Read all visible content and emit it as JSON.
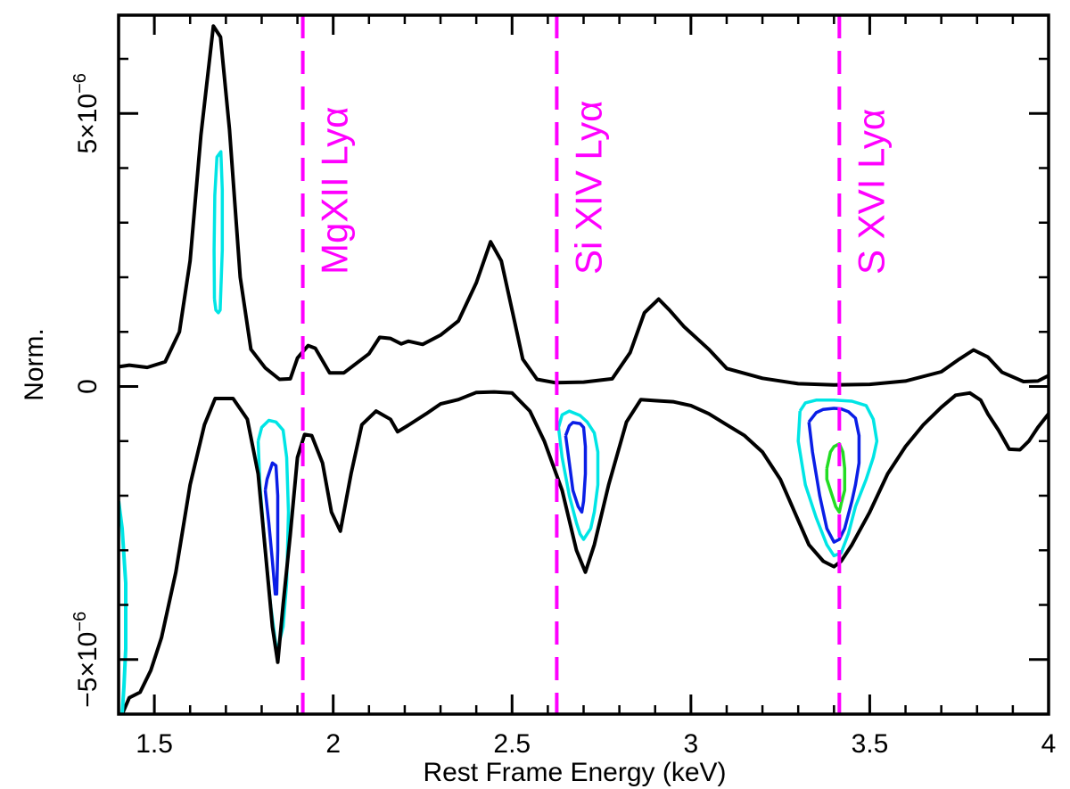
{
  "chart_data": {
    "type": "line",
    "title": "",
    "xlabel": "Rest Frame Energy (keV)",
    "ylabel": "Norm.",
    "xlim": [
      1.4,
      4.0
    ],
    "ylim": [
      -6e-06,
      6.8e-06
    ],
    "x_ticks": [
      {
        "value": 1.5,
        "label": "1.5"
      },
      {
        "value": 2.0,
        "label": "2"
      },
      {
        "value": 2.5,
        "label": "2.5"
      },
      {
        "value": 3.0,
        "label": "3"
      },
      {
        "value": 3.5,
        "label": "3.5"
      },
      {
        "value": 4.0,
        "label": "4"
      }
    ],
    "x_minor_step": 0.1,
    "y_ticks": [
      {
        "value": 5e-06,
        "label_base": "5×10",
        "label_exp": "−6"
      },
      {
        "value": 0,
        "label_base": "0",
        "label_exp": ""
      },
      {
        "value": -5e-06,
        "label_base": "−5×10",
        "label_exp": "−6"
      }
    ],
    "y_minor_step": 1e-06,
    "colors": {
      "black": "#000000",
      "cyan": "#00e5e5",
      "blue": "#0a1ee6",
      "green": "#22dd22",
      "magenta": "#ff00ff"
    },
    "reference_lines": [
      {
        "energy": 1.915,
        "label": "MgXII Lyα"
      },
      {
        "energy": 2.625,
        "label": "Si XIV Lyα"
      },
      {
        "energy": 3.415,
        "label": "S XVI Lyα"
      }
    ],
    "series": [
      {
        "name": "upper-envelope",
        "color": "black",
        "x": [
          1.4,
          1.43,
          1.48,
          1.53,
          1.57,
          1.6,
          1.63,
          1.665,
          1.685,
          1.71,
          1.74,
          1.77,
          1.81,
          1.85,
          1.88,
          1.9,
          1.93,
          1.95,
          1.99,
          2.03,
          2.1,
          2.13,
          2.16,
          2.19,
          2.21,
          2.25,
          2.3,
          2.35,
          2.4,
          2.44,
          2.47,
          2.5,
          2.53,
          2.57,
          2.62,
          2.7,
          2.78,
          2.83,
          2.87,
          2.91,
          2.94,
          2.98,
          3.05,
          3.1,
          3.2,
          3.3,
          3.4,
          3.5,
          3.6,
          3.7,
          3.75,
          3.79,
          3.83,
          3.87,
          3.93,
          3.97,
          4.0
        ],
        "y": [
          3.6e-07,
          3.9e-07,
          3.5e-07,
          4.5e-07,
          1e-06,
          2.3e-06,
          4.6e-06,
          6.6e-06,
          6.4e-06,
          4.7e-06,
          2e-06,
          6.8e-07,
          3.4e-07,
          1.3e-07,
          1.4e-07,
          5.2e-07,
          7.5e-07,
          7e-07,
          2.5e-07,
          2.5e-07,
          6e-07,
          9e-07,
          8.8e-07,
          7.8e-07,
          8.3e-07,
          7.7e-07,
          9.4e-07,
          1.2e-06,
          1.9e-06,
          2.65e-06,
          2.3e-06,
          1.4e-06,
          5e-07,
          1.3e-07,
          7e-08,
          8e-08,
          1.4e-07,
          6.2e-07,
          1.35e-06,
          1.6e-06,
          1.4e-06,
          1.1e-06,
          6.8e-07,
          3.3e-07,
          1.5e-07,
          5e-08,
          3e-08,
          4e-08,
          1e-07,
          2.7e-07,
          5e-07,
          6.7e-07,
          5.4e-07,
          2.6e-07,
          9e-08,
          1e-07,
          2e-07
        ]
      },
      {
        "name": "lower-envelope",
        "color": "black",
        "x": [
          1.41,
          1.43,
          1.46,
          1.49,
          1.52,
          1.56,
          1.6,
          1.64,
          1.67,
          1.72,
          1.76,
          1.79,
          1.81,
          1.83,
          1.845,
          1.86,
          1.88,
          1.9,
          1.92,
          1.94,
          1.97,
          1.995,
          2.02,
          2.05,
          2.08,
          2.12,
          2.16,
          2.18,
          2.21,
          2.26,
          2.3,
          2.35,
          2.4,
          2.45,
          2.5,
          2.55,
          2.59,
          2.64,
          2.68,
          2.705,
          2.73,
          2.77,
          2.82,
          2.86,
          2.9,
          2.95,
          3.0,
          3.05,
          3.1,
          3.15,
          3.2,
          3.25,
          3.29,
          3.33,
          3.37,
          3.4,
          3.42,
          3.45,
          3.5,
          3.55,
          3.6,
          3.65,
          3.7,
          3.74,
          3.78,
          3.81,
          3.83,
          3.86,
          3.89,
          3.92,
          3.945,
          3.97,
          4.0
        ],
        "y": [
          -6e-06,
          -5.7e-06,
          -5.6e-06,
          -5.2e-06,
          -4.6e-06,
          -3.4e-06,
          -1.8e-06,
          -7e-07,
          -2.2e-07,
          -2.2e-07,
          -6e-07,
          -1.6e-06,
          -3e-06,
          -4.4e-06,
          -5.05e-06,
          -4e-06,
          -2.7e-06,
          -1.3e-06,
          -8.8e-07,
          -9e-07,
          -1.4e-06,
          -2.3e-06,
          -2.65e-06,
          -1.6e-06,
          -7e-07,
          -4.5e-07,
          -6e-07,
          -8.3e-07,
          -7.1e-07,
          -5e-07,
          -3.2e-07,
          -2.4e-07,
          -1.1e-07,
          -1e-07,
          -1.2e-07,
          -4.5e-07,
          -1e-06,
          -1.9e-06,
          -3e-06,
          -3.4e-06,
          -2.9e-06,
          -1.8e-06,
          -6.5e-07,
          -2.4e-07,
          -2.6e-07,
          -2.8e-07,
          -3.5e-07,
          -5e-07,
          -7e-07,
          -9e-07,
          -1.2e-06,
          -1.7e-06,
          -2.3e-06,
          -2.9e-06,
          -3.2e-06,
          -3.3e-06,
          -3.2e-06,
          -2.9e-06,
          -2.3e-06,
          -1.6e-06,
          -1.1e-06,
          -7e-07,
          -3.8e-07,
          -1.6e-07,
          -1.2e-07,
          -2.5e-07,
          -5e-07,
          -8e-07,
          -1.15e-06,
          -1.16e-06,
          -1e-06,
          -7.5e-07,
          -5e-07
        ]
      },
      {
        "name": "cyan-contour-left-edge",
        "color": "cyan",
        "x": [
          1.4,
          1.41,
          1.42,
          1.42,
          1.415,
          1.41,
          1.4
        ],
        "y": [
          -2.1e-06,
          -2.6e-06,
          -3.6e-06,
          -4.8e-06,
          -5.5e-06,
          -6e-06,
          -6e-06
        ]
      }
    ],
    "contours": [
      {
        "name": "cyan-emission-1.68",
        "color": "cyan",
        "x": [
          1.668,
          1.672,
          1.679,
          1.684,
          1.69,
          1.69,
          1.686,
          1.675,
          1.669,
          1.667,
          1.668
        ],
        "y": [
          1.6e-06,
          1.4e-06,
          1.35e-06,
          1.4e-06,
          2.5e-06,
          3.6e-06,
          4.3e-06,
          4.2e-06,
          3.5e-06,
          2.5e-06,
          1.6e-06
        ]
      },
      {
        "name": "cyan-absorption-1.84",
        "color": "cyan",
        "x": [
          1.79,
          1.8,
          1.82,
          1.84,
          1.86,
          1.87,
          1.875,
          1.87,
          1.86,
          1.845,
          1.84,
          1.825,
          1.81,
          1.795,
          1.79
        ],
        "y": [
          -1e-06,
          -7.5e-07,
          -6.2e-07,
          -6.5e-07,
          -8e-07,
          -1.3e-06,
          -2.3e-06,
          -3.6e-06,
          -4.4e-06,
          -4.8e-06,
          -4.75e-06,
          -4e-06,
          -3e-06,
          -1.8e-06,
          -1e-06
        ]
      },
      {
        "name": "blue-absorption-1.84",
        "color": "blue",
        "x": [
          1.81,
          1.815,
          1.83,
          1.84,
          1.845,
          1.845,
          1.842,
          1.838,
          1.83,
          1.82,
          1.81
        ],
        "y": [
          -1.9e-06,
          -1.7e-06,
          -1.4e-06,
          -1.45e-06,
          -2e-06,
          -3e-06,
          -3.8e-06,
          -3.8e-06,
          -3.2e-06,
          -2.5e-06,
          -1.9e-06
        ]
      },
      {
        "name": "cyan-absorption-2.70",
        "color": "cyan",
        "x": [
          2.63,
          2.64,
          2.66,
          2.69,
          2.71,
          2.73,
          2.74,
          2.74,
          2.73,
          2.72,
          2.7,
          2.69,
          2.68,
          2.66,
          2.64,
          2.63
        ],
        "y": [
          -7.5e-07,
          -5.2e-07,
          -4.5e-07,
          -5.3e-07,
          -6.5e-07,
          -8.5e-07,
          -1.2e-06,
          -1.8e-06,
          -2.3e-06,
          -2.6e-06,
          -2.8e-06,
          -2.7e-06,
          -2.5e-06,
          -2e-06,
          -1.3e-06,
          -7.5e-07
        ]
      },
      {
        "name": "blue-absorption-2.70",
        "color": "blue",
        "x": [
          2.65,
          2.66,
          2.67,
          2.69,
          2.7,
          2.705,
          2.705,
          2.7,
          2.695,
          2.685,
          2.67,
          2.66,
          2.65
        ],
        "y": [
          -9e-07,
          -7.2e-07,
          -6.6e-07,
          -6.8e-07,
          -7.5e-07,
          -1.1e-06,
          -1.6e-06,
          -2.1e-06,
          -2.3e-06,
          -2.2e-06,
          -1.9e-06,
          -1.4e-06,
          -9e-07
        ]
      },
      {
        "name": "cyan-absorption-3.42",
        "color": "cyan",
        "x": [
          3.305,
          3.32,
          3.35,
          3.4,
          3.45,
          3.49,
          3.51,
          3.52,
          3.51,
          3.49,
          3.46,
          3.44,
          3.42,
          3.4,
          3.38,
          3.35,
          3.32,
          3.3,
          3.305
        ],
        "y": [
          -4.5e-07,
          -3e-07,
          -2.5e-07,
          -2.5e-07,
          -2.7e-07,
          -3.5e-07,
          -6e-07,
          -1e-06,
          -1.3e-06,
          -1.7e-06,
          -2.2e-06,
          -2.7e-06,
          -3.05e-06,
          -3.1e-06,
          -2.9e-06,
          -2.4e-06,
          -1.8e-06,
          -1e-06,
          -4.5e-07
        ]
      },
      {
        "name": "blue-absorption-3.42",
        "color": "blue",
        "x": [
          3.33,
          3.35,
          3.37,
          3.4,
          3.42,
          3.44,
          3.46,
          3.47,
          3.47,
          3.46,
          3.45,
          3.43,
          3.415,
          3.4,
          3.38,
          3.36,
          3.34,
          3.33
        ],
        "y": [
          -6.5e-07,
          -4.8e-07,
          -4.2e-07,
          -4e-07,
          -4.1e-07,
          -4.6e-07,
          -5.8e-07,
          -9e-07,
          -1.4e-06,
          -1.8e-06,
          -2.1e-06,
          -2.6e-06,
          -2.8e-06,
          -2.85e-06,
          -2.6e-06,
          -2e-06,
          -1.2e-06,
          -6.5e-07
        ]
      },
      {
        "name": "green-absorption-3.42",
        "color": "green",
        "x": [
          3.38,
          3.39,
          3.4,
          3.415,
          3.425,
          3.43,
          3.43,
          3.42,
          3.415,
          3.405,
          3.39,
          3.38,
          3.38
        ],
        "y": [
          -1.5e-06,
          -1.2e-06,
          -1.1e-06,
          -1.05e-06,
          -1.2e-06,
          -1.5e-06,
          -1.9e-06,
          -2.15e-06,
          -2.3e-06,
          -2.2e-06,
          -1.9e-06,
          -1.7e-06,
          -1.5e-06
        ]
      }
    ]
  }
}
